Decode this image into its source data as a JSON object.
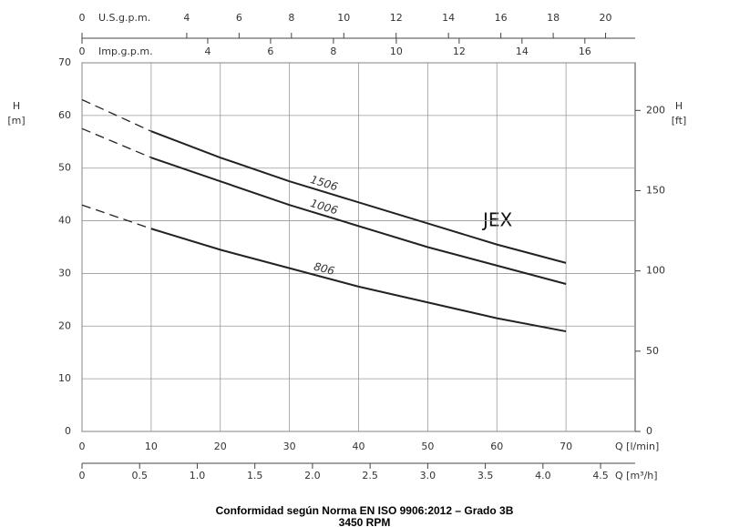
{
  "chart_data": {
    "type": "line",
    "annotation": "JEX",
    "xlabel": "Q [l/min]",
    "ylabel": "H",
    "yunit": "[m]",
    "y2label": "H",
    "y2unit": "[ft]",
    "x": [
      0,
      10,
      20,
      30,
      40,
      50,
      60,
      70
    ],
    "dashed_below_x": 10,
    "series": [
      {
        "name": "1506",
        "color": "#222222",
        "values": [
          63,
          57,
          52,
          47.5,
          43.5,
          39.5,
          35.5,
          32
        ]
      },
      {
        "name": "1006",
        "color": "#222222",
        "values": [
          57.5,
          52,
          47.5,
          43,
          39,
          35,
          31.5,
          28
        ]
      },
      {
        "name": "806",
        "color": "#222222",
        "values": [
          43,
          38.5,
          34.5,
          31,
          27.5,
          24.5,
          21.5,
          19
        ]
      }
    ],
    "xlim": [
      0,
      80
    ],
    "xticks": [
      0,
      10,
      20,
      30,
      40,
      50,
      60,
      70
    ],
    "ylim": [
      0,
      70
    ],
    "yticks": [
      0,
      10,
      20,
      30,
      40,
      50,
      60,
      70
    ],
    "y2lim": [
      0,
      229.66
    ],
    "y2ticks": [
      0,
      50,
      100,
      150,
      200
    ],
    "x_m3h": {
      "label": "Q [m³/h]",
      "lim": [
        0,
        4.8
      ],
      "ticks": [
        0,
        0.5,
        {
          "value": 1,
          "label": "1.0"
        },
        1.5,
        {
          "value": 2,
          "label": "2.0"
        },
        2.5,
        {
          "value": 3,
          "label": "3.0"
        },
        3.5,
        {
          "value": 4,
          "label": "4.0"
        },
        4.5
      ]
    },
    "x_usgpm": {
      "label": "U.S.g.p.m.",
      "lim": [
        0,
        21.13
      ],
      "ticks": [
        0,
        4,
        6,
        8,
        10,
        12,
        14,
        16,
        18,
        20
      ]
    },
    "x_impgpm": {
      "label": "Imp.g.p.m.",
      "lim": [
        0,
        17.6
      ],
      "ticks": [
        0,
        4,
        6,
        8,
        10,
        12,
        14,
        16
      ]
    },
    "grid": true,
    "footer": [
      "Conformidad según Norma EN ISO 9906:2012 – Grado 3B",
      "3450 RPM"
    ]
  }
}
